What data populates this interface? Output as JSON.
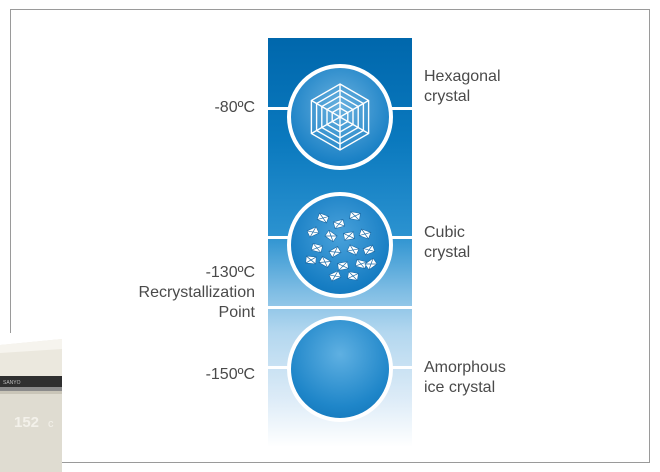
{
  "stages": [
    {
      "temperature_lines": [
        "-80ºC"
      ],
      "crystal_lines": [
        "Hexagonal",
        "crystal"
      ],
      "icon": "hexagonal-crystal-icon"
    },
    {
      "temperature_lines": [
        "-130ºC",
        "Recrystallization",
        "Point"
      ],
      "crystal_lines": [
        "Cubic",
        "crystal"
      ],
      "icon": "cubic-crystal-icon"
    },
    {
      "temperature_lines": [
        "-150ºC"
      ],
      "crystal_lines": [
        "Amorphous",
        "ice crystal"
      ],
      "icon": "amorphous-crystal-icon"
    }
  ],
  "freezer": {
    "model_text": "152",
    "brand_text": "SANYO",
    "colors": {
      "body": "#e9e6dc",
      "panel": "#2f2f2f"
    }
  },
  "colors": {
    "column_top": "#0067ac",
    "column_bottom": "#ffffff",
    "text": "#4a4a4a",
    "frame_border": "#9a9a9a"
  }
}
